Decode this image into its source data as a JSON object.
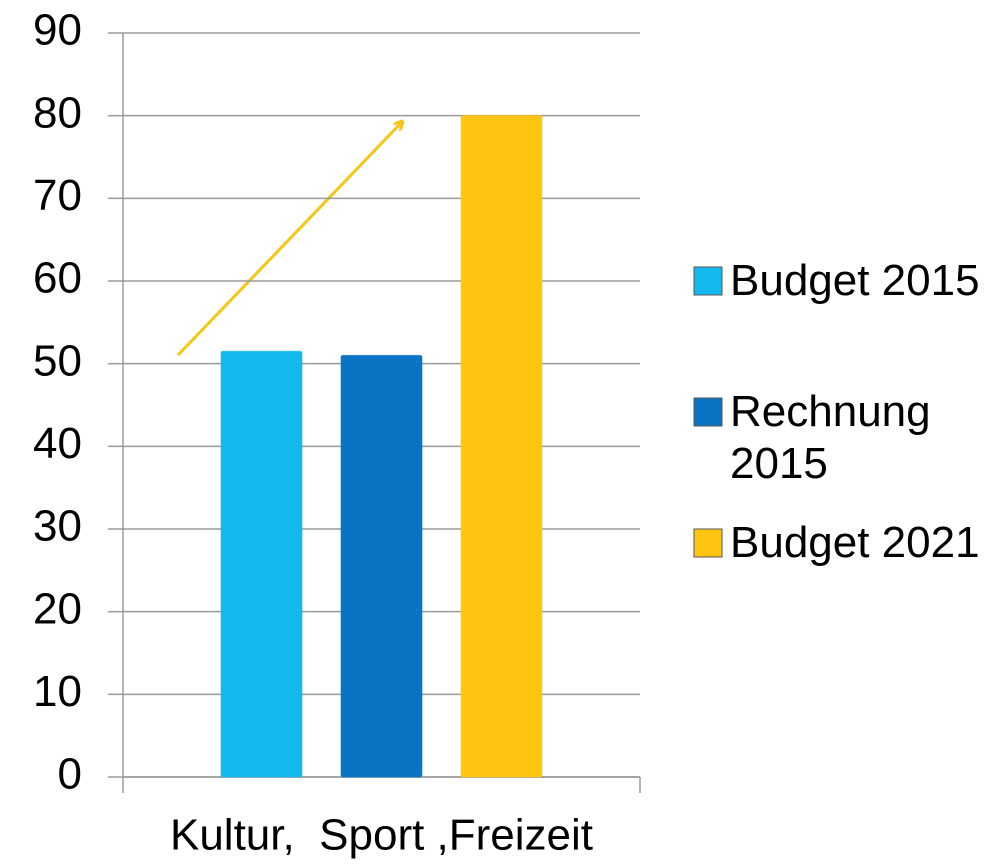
{
  "chart_data": {
    "type": "bar",
    "categories": [
      "Kultur,  Sport ,Freizeit"
    ],
    "series": [
      {
        "name": "Budget 2015",
        "color": "#12b8ee",
        "values": [
          51.5
        ]
      },
      {
        "name": "Rechnung 2015",
        "color": "#0a74c4",
        "values": [
          51
        ]
      },
      {
        "name": "Budget 2021",
        "color": "#ffc510",
        "values": [
          80
        ]
      }
    ],
    "ylim": [
      0,
      90
    ],
    "yticks": [
      0,
      10,
      20,
      30,
      40,
      50,
      60,
      70,
      80,
      90
    ],
    "grid": true,
    "legend": "right"
  }
}
